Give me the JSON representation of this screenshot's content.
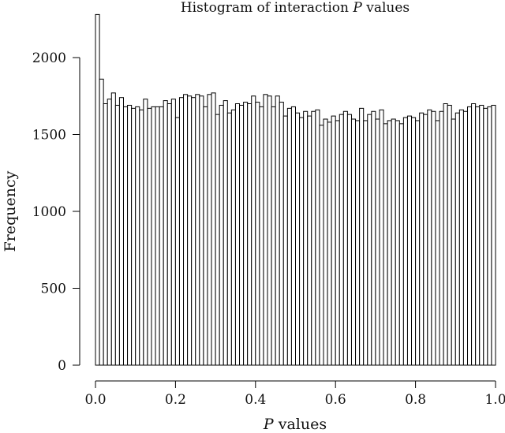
{
  "chart_data": {
    "type": "bar",
    "subtype": "histogram",
    "title_prefix": "Histogram of interaction ",
    "title_italic": "P",
    "title_suffix": " values",
    "xlabel_italic": "P",
    "xlabel_suffix": " values",
    "ylabel": "Frequency",
    "xlim": [
      0,
      1
    ],
    "ylim": [
      0,
      2300
    ],
    "xticks": [
      "0.0",
      "0.2",
      "0.4",
      "0.6",
      "0.8",
      "1.0"
    ],
    "xtick_values": [
      0,
      0.2,
      0.4,
      0.6,
      0.8,
      1.0
    ],
    "yticks": [
      "0",
      "500",
      "1000",
      "1500",
      "2000"
    ],
    "ytick_values": [
      0,
      500,
      1000,
      1500,
      2000
    ],
    "bin_width": 0.01,
    "values": [
      2280,
      1860,
      1700,
      1730,
      1770,
      1690,
      1740,
      1680,
      1690,
      1670,
      1680,
      1660,
      1730,
      1670,
      1680,
      1680,
      1680,
      1720,
      1700,
      1730,
      1610,
      1740,
      1760,
      1750,
      1740,
      1760,
      1750,
      1680,
      1760,
      1770,
      1630,
      1690,
      1720,
      1640,
      1660,
      1700,
      1690,
      1710,
      1700,
      1750,
      1710,
      1680,
      1760,
      1750,
      1680,
      1750,
      1710,
      1620,
      1670,
      1680,
      1640,
      1610,
      1650,
      1620,
      1650,
      1660,
      1560,
      1600,
      1580,
      1620,
      1590,
      1630,
      1650,
      1630,
      1600,
      1590,
      1670,
      1590,
      1630,
      1650,
      1600,
      1660,
      1570,
      1590,
      1600,
      1590,
      1570,
      1610,
      1620,
      1610,
      1590,
      1640,
      1630,
      1660,
      1650,
      1590,
      1650,
      1700,
      1690,
      1600,
      1640,
      1660,
      1650,
      1680,
      1700,
      1680,
      1690,
      1670,
      1680,
      1690
    ]
  }
}
